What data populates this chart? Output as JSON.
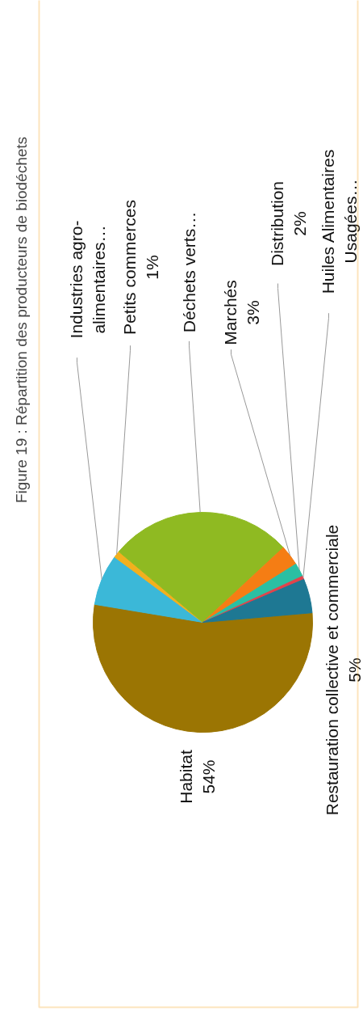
{
  "chart_data": {
    "type": "pie",
    "title": "Figure 19 : Répartition des producteurs de biodéchets",
    "categories": [
      "Habitat",
      "Industries agro-alimentaires…",
      "Petits commerces",
      "Déchets verts…",
      "Marchés",
      "Distribution",
      "Huiles Alimentaires Usagées…",
      "Restauration collective et commerciale"
    ],
    "values": [
      54,
      7.5,
      1,
      27,
      3,
      2,
      0.5,
      5
    ],
    "colors": [
      "#9b7503",
      "#3bb8d8",
      "#f2b01e",
      "#8fba22",
      "#f57d14",
      "#2bbfa3",
      "#e2434b",
      "#1e7893"
    ],
    "value_labels": [
      "54%",
      null,
      "1%",
      null,
      "3%",
      "2%",
      null,
      "5%"
    ]
  }
}
